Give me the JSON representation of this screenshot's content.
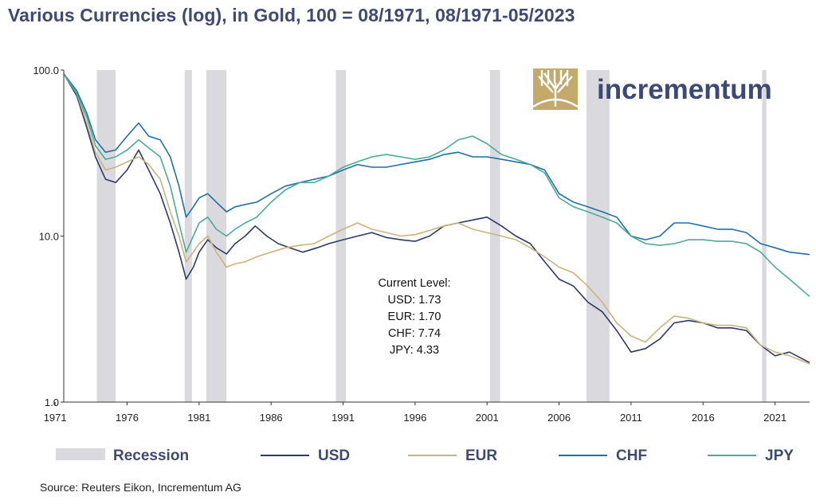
{
  "chart_data": {
    "type": "line",
    "title": "Various Currencies (log), in Gold, 100 = 08/1971, 08/1971-05/2023",
    "yscale": "log",
    "ylim": [
      1.0,
      100.0
    ],
    "xlim": [
      1971.6,
      2023.4
    ],
    "y_tick_labels": [
      "1.0",
      "10.0",
      "100.0"
    ],
    "x_tick_labels": [
      "1971",
      "1976",
      "1981",
      "1986",
      "1991",
      "1996",
      "2001",
      "2006",
      "2011",
      "2016",
      "2021"
    ],
    "grid": false,
    "legend_position": "bottom",
    "recessions": [
      {
        "start": 1973.9,
        "end": 1975.2
      },
      {
        "start": 1980.0,
        "end": 1980.5
      },
      {
        "start": 1981.5,
        "end": 1982.9
      },
      {
        "start": 1990.5,
        "end": 1991.2
      },
      {
        "start": 2001.2,
        "end": 2001.9
      },
      {
        "start": 2007.9,
        "end": 2009.5
      },
      {
        "start": 2020.1,
        "end": 2020.4
      }
    ],
    "recession_label": "Recession",
    "recession_color": "#d9d9de",
    "series": [
      {
        "name": "USD",
        "color": "#2b3a6b",
        "points": [
          [
            1971.6,
            95
          ],
          [
            1972.5,
            70
          ],
          [
            1973.2,
            45
          ],
          [
            1973.8,
            30
          ],
          [
            1974.5,
            22
          ],
          [
            1975.2,
            21
          ],
          [
            1976.0,
            25
          ],
          [
            1976.8,
            33
          ],
          [
            1977.5,
            25
          ],
          [
            1978.3,
            18
          ],
          [
            1979.0,
            12
          ],
          [
            1979.6,
            8
          ],
          [
            1980.1,
            5.5
          ],
          [
            1980.6,
            6.5
          ],
          [
            1981.0,
            8
          ],
          [
            1981.6,
            9.5
          ],
          [
            1982.2,
            8.5
          ],
          [
            1982.9,
            7.8
          ],
          [
            1983.5,
            9
          ],
          [
            1984.2,
            10
          ],
          [
            1984.9,
            11.5
          ],
          [
            1985.7,
            10
          ],
          [
            1986.5,
            9
          ],
          [
            1987.3,
            8.5
          ],
          [
            1988.2,
            8
          ],
          [
            1989.2,
            8.5
          ],
          [
            1990.0,
            9
          ],
          [
            1991.0,
            9.5
          ],
          [
            1992.0,
            10
          ],
          [
            1993.0,
            10.5
          ],
          [
            1994.0,
            9.8
          ],
          [
            1995.0,
            9.5
          ],
          [
            1996.0,
            9.3
          ],
          [
            1997.0,
            10
          ],
          [
            1998.0,
            11.5
          ],
          [
            1999.0,
            12
          ],
          [
            2000.0,
            12.5
          ],
          [
            2001.0,
            13
          ],
          [
            2002.0,
            11.5
          ],
          [
            2003.0,
            10
          ],
          [
            2004.0,
            9
          ],
          [
            2005.0,
            7
          ],
          [
            2006.0,
            5.5
          ],
          [
            2007.0,
            5
          ],
          [
            2008.0,
            4
          ],
          [
            2009.0,
            3.5
          ],
          [
            2010.0,
            2.7
          ],
          [
            2011.0,
            2
          ],
          [
            2012.0,
            2.1
          ],
          [
            2013.0,
            2.4
          ],
          [
            2014.0,
            3
          ],
          [
            2015.0,
            3.1
          ],
          [
            2016.0,
            3
          ],
          [
            2017.0,
            2.8
          ],
          [
            2018.0,
            2.8
          ],
          [
            2019.0,
            2.7
          ],
          [
            2020.0,
            2.2
          ],
          [
            2021.0,
            1.9
          ],
          [
            2022.0,
            2
          ],
          [
            2023.4,
            1.73
          ]
        ]
      },
      {
        "name": "EUR",
        "color": "#c8b47c",
        "points": [
          [
            1971.6,
            95
          ],
          [
            1972.5,
            72
          ],
          [
            1973.2,
            48
          ],
          [
            1973.8,
            32
          ],
          [
            1974.5,
            25
          ],
          [
            1975.2,
            26
          ],
          [
            1976.0,
            28
          ],
          [
            1976.8,
            30
          ],
          [
            1977.5,
            27
          ],
          [
            1978.3,
            22
          ],
          [
            1979.0,
            14
          ],
          [
            1979.6,
            10
          ],
          [
            1980.1,
            7
          ],
          [
            1980.6,
            8
          ],
          [
            1981.0,
            9
          ],
          [
            1981.6,
            10
          ],
          [
            1982.2,
            8
          ],
          [
            1982.9,
            6.5
          ],
          [
            1983.5,
            6.8
          ],
          [
            1984.2,
            7
          ],
          [
            1985.0,
            7.5
          ],
          [
            1986.0,
            8
          ],
          [
            1987.0,
            8.5
          ],
          [
            1988.0,
            8.8
          ],
          [
            1989.0,
            9
          ],
          [
            1990.0,
            10
          ],
          [
            1991.0,
            11
          ],
          [
            1992.0,
            12
          ],
          [
            1993.0,
            11
          ],
          [
            1994.0,
            10.5
          ],
          [
            1995.0,
            10
          ],
          [
            1996.0,
            10.2
          ],
          [
            1997.0,
            10.8
          ],
          [
            1998.0,
            11.5
          ],
          [
            1999.0,
            12
          ],
          [
            2000.0,
            11
          ],
          [
            2001.0,
            10.5
          ],
          [
            2002.0,
            10
          ],
          [
            2003.0,
            9.5
          ],
          [
            2004.0,
            8.5
          ],
          [
            2005.0,
            7.5
          ],
          [
            2006.0,
            6.5
          ],
          [
            2007.0,
            6
          ],
          [
            2008.0,
            5
          ],
          [
            2009.0,
            4
          ],
          [
            2010.0,
            3
          ],
          [
            2011.0,
            2.5
          ],
          [
            2012.0,
            2.3
          ],
          [
            2013.0,
            2.8
          ],
          [
            2014.0,
            3.3
          ],
          [
            2015.0,
            3.2
          ],
          [
            2016.0,
            3
          ],
          [
            2017.0,
            2.9
          ],
          [
            2018.0,
            2.9
          ],
          [
            2019.0,
            2.8
          ],
          [
            2020.0,
            2.2
          ],
          [
            2021.0,
            2
          ],
          [
            2022.0,
            1.9
          ],
          [
            2023.4,
            1.7
          ]
        ]
      },
      {
        "name": "CHF",
        "color": "#1f6fa8",
        "points": [
          [
            1971.6,
            95
          ],
          [
            1972.5,
            75
          ],
          [
            1973.2,
            55
          ],
          [
            1973.8,
            38
          ],
          [
            1974.5,
            32
          ],
          [
            1975.2,
            33
          ],
          [
            1976.0,
            40
          ],
          [
            1976.8,
            48
          ],
          [
            1977.5,
            40
          ],
          [
            1978.3,
            38
          ],
          [
            1979.0,
            30
          ],
          [
            1979.6,
            20
          ],
          [
            1980.1,
            13
          ],
          [
            1980.6,
            15
          ],
          [
            1981.0,
            17
          ],
          [
            1981.6,
            18
          ],
          [
            1982.2,
            16
          ],
          [
            1982.9,
            14
          ],
          [
            1983.5,
            15
          ],
          [
            1984.2,
            15.5
          ],
          [
            1985.0,
            16
          ],
          [
            1986.0,
            18
          ],
          [
            1987.0,
            20
          ],
          [
            1988.0,
            21
          ],
          [
            1989.0,
            22
          ],
          [
            1990.0,
            23
          ],
          [
            1991.0,
            25
          ],
          [
            1992.0,
            27
          ],
          [
            1993.0,
            26
          ],
          [
            1994.0,
            26
          ],
          [
            1995.0,
            27
          ],
          [
            1996.0,
            28
          ],
          [
            1997.0,
            29
          ],
          [
            1998.0,
            31
          ],
          [
            1999.0,
            32
          ],
          [
            2000.0,
            30
          ],
          [
            2001.0,
            30
          ],
          [
            2002.0,
            29
          ],
          [
            2003.0,
            28
          ],
          [
            2004.0,
            27
          ],
          [
            2005.0,
            25
          ],
          [
            2006.0,
            18
          ],
          [
            2007.0,
            16
          ],
          [
            2008.0,
            15
          ],
          [
            2009.0,
            14
          ],
          [
            2010.0,
            13
          ],
          [
            2011.0,
            10
          ],
          [
            2012.0,
            9.5
          ],
          [
            2013.0,
            10
          ],
          [
            2014.0,
            12
          ],
          [
            2015.0,
            12
          ],
          [
            2016.0,
            11.5
          ],
          [
            2017.0,
            11
          ],
          [
            2018.0,
            11
          ],
          [
            2019.0,
            10.5
          ],
          [
            2020.0,
            9
          ],
          [
            2021.0,
            8.5
          ],
          [
            2022.0,
            8
          ],
          [
            2023.4,
            7.74
          ]
        ]
      },
      {
        "name": "JPY",
        "color": "#4aac96",
        "points": [
          [
            1971.6,
            95
          ],
          [
            1972.5,
            72
          ],
          [
            1973.2,
            52
          ],
          [
            1973.8,
            35
          ],
          [
            1974.5,
            29
          ],
          [
            1975.2,
            30
          ],
          [
            1976.0,
            33
          ],
          [
            1976.8,
            38
          ],
          [
            1977.5,
            34
          ],
          [
            1978.3,
            30
          ],
          [
            1979.0,
            20
          ],
          [
            1979.6,
            12
          ],
          [
            1980.1,
            8
          ],
          [
            1980.6,
            10
          ],
          [
            1981.0,
            12
          ],
          [
            1981.6,
            13
          ],
          [
            1982.2,
            11
          ],
          [
            1982.9,
            10
          ],
          [
            1983.5,
            11
          ],
          [
            1984.2,
            12
          ],
          [
            1985.0,
            13
          ],
          [
            1986.0,
            16
          ],
          [
            1987.0,
            19
          ],
          [
            1988.0,
            21
          ],
          [
            1989.0,
            21
          ],
          [
            1990.0,
            23
          ],
          [
            1991.0,
            26
          ],
          [
            1992.0,
            28
          ],
          [
            1993.0,
            30
          ],
          [
            1994.0,
            31
          ],
          [
            1995.0,
            30
          ],
          [
            1996.0,
            29
          ],
          [
            1997.0,
            30
          ],
          [
            1998.0,
            33
          ],
          [
            1999.0,
            38
          ],
          [
            2000.0,
            40
          ],
          [
            2001.0,
            36
          ],
          [
            2002.0,
            31
          ],
          [
            2003.0,
            29
          ],
          [
            2004.0,
            27
          ],
          [
            2005.0,
            24
          ],
          [
            2006.0,
            17
          ],
          [
            2007.0,
            15
          ],
          [
            2008.0,
            14
          ],
          [
            2009.0,
            13
          ],
          [
            2010.0,
            12
          ],
          [
            2011.0,
            10
          ],
          [
            2012.0,
            9
          ],
          [
            2013.0,
            8.8
          ],
          [
            2014.0,
            9
          ],
          [
            2015.0,
            9.5
          ],
          [
            2016.0,
            9.5
          ],
          [
            2017.0,
            9.3
          ],
          [
            2018.0,
            9.3
          ],
          [
            2019.0,
            9
          ],
          [
            2020.0,
            8
          ],
          [
            2021.0,
            6.5
          ],
          [
            2022.0,
            5.5
          ],
          [
            2023.4,
            4.33
          ]
        ]
      }
    ],
    "annotation_lines": [
      "Current Level:",
      "USD: 1.73",
      "EUR: 1.70",
      "CHF: 7.74",
      "JPY: 4.33"
    ]
  },
  "brand": {
    "name": "incrementum",
    "logo_color": "#c3a96a"
  },
  "source": "Source: Reuters Eikon, Incrementum AG"
}
